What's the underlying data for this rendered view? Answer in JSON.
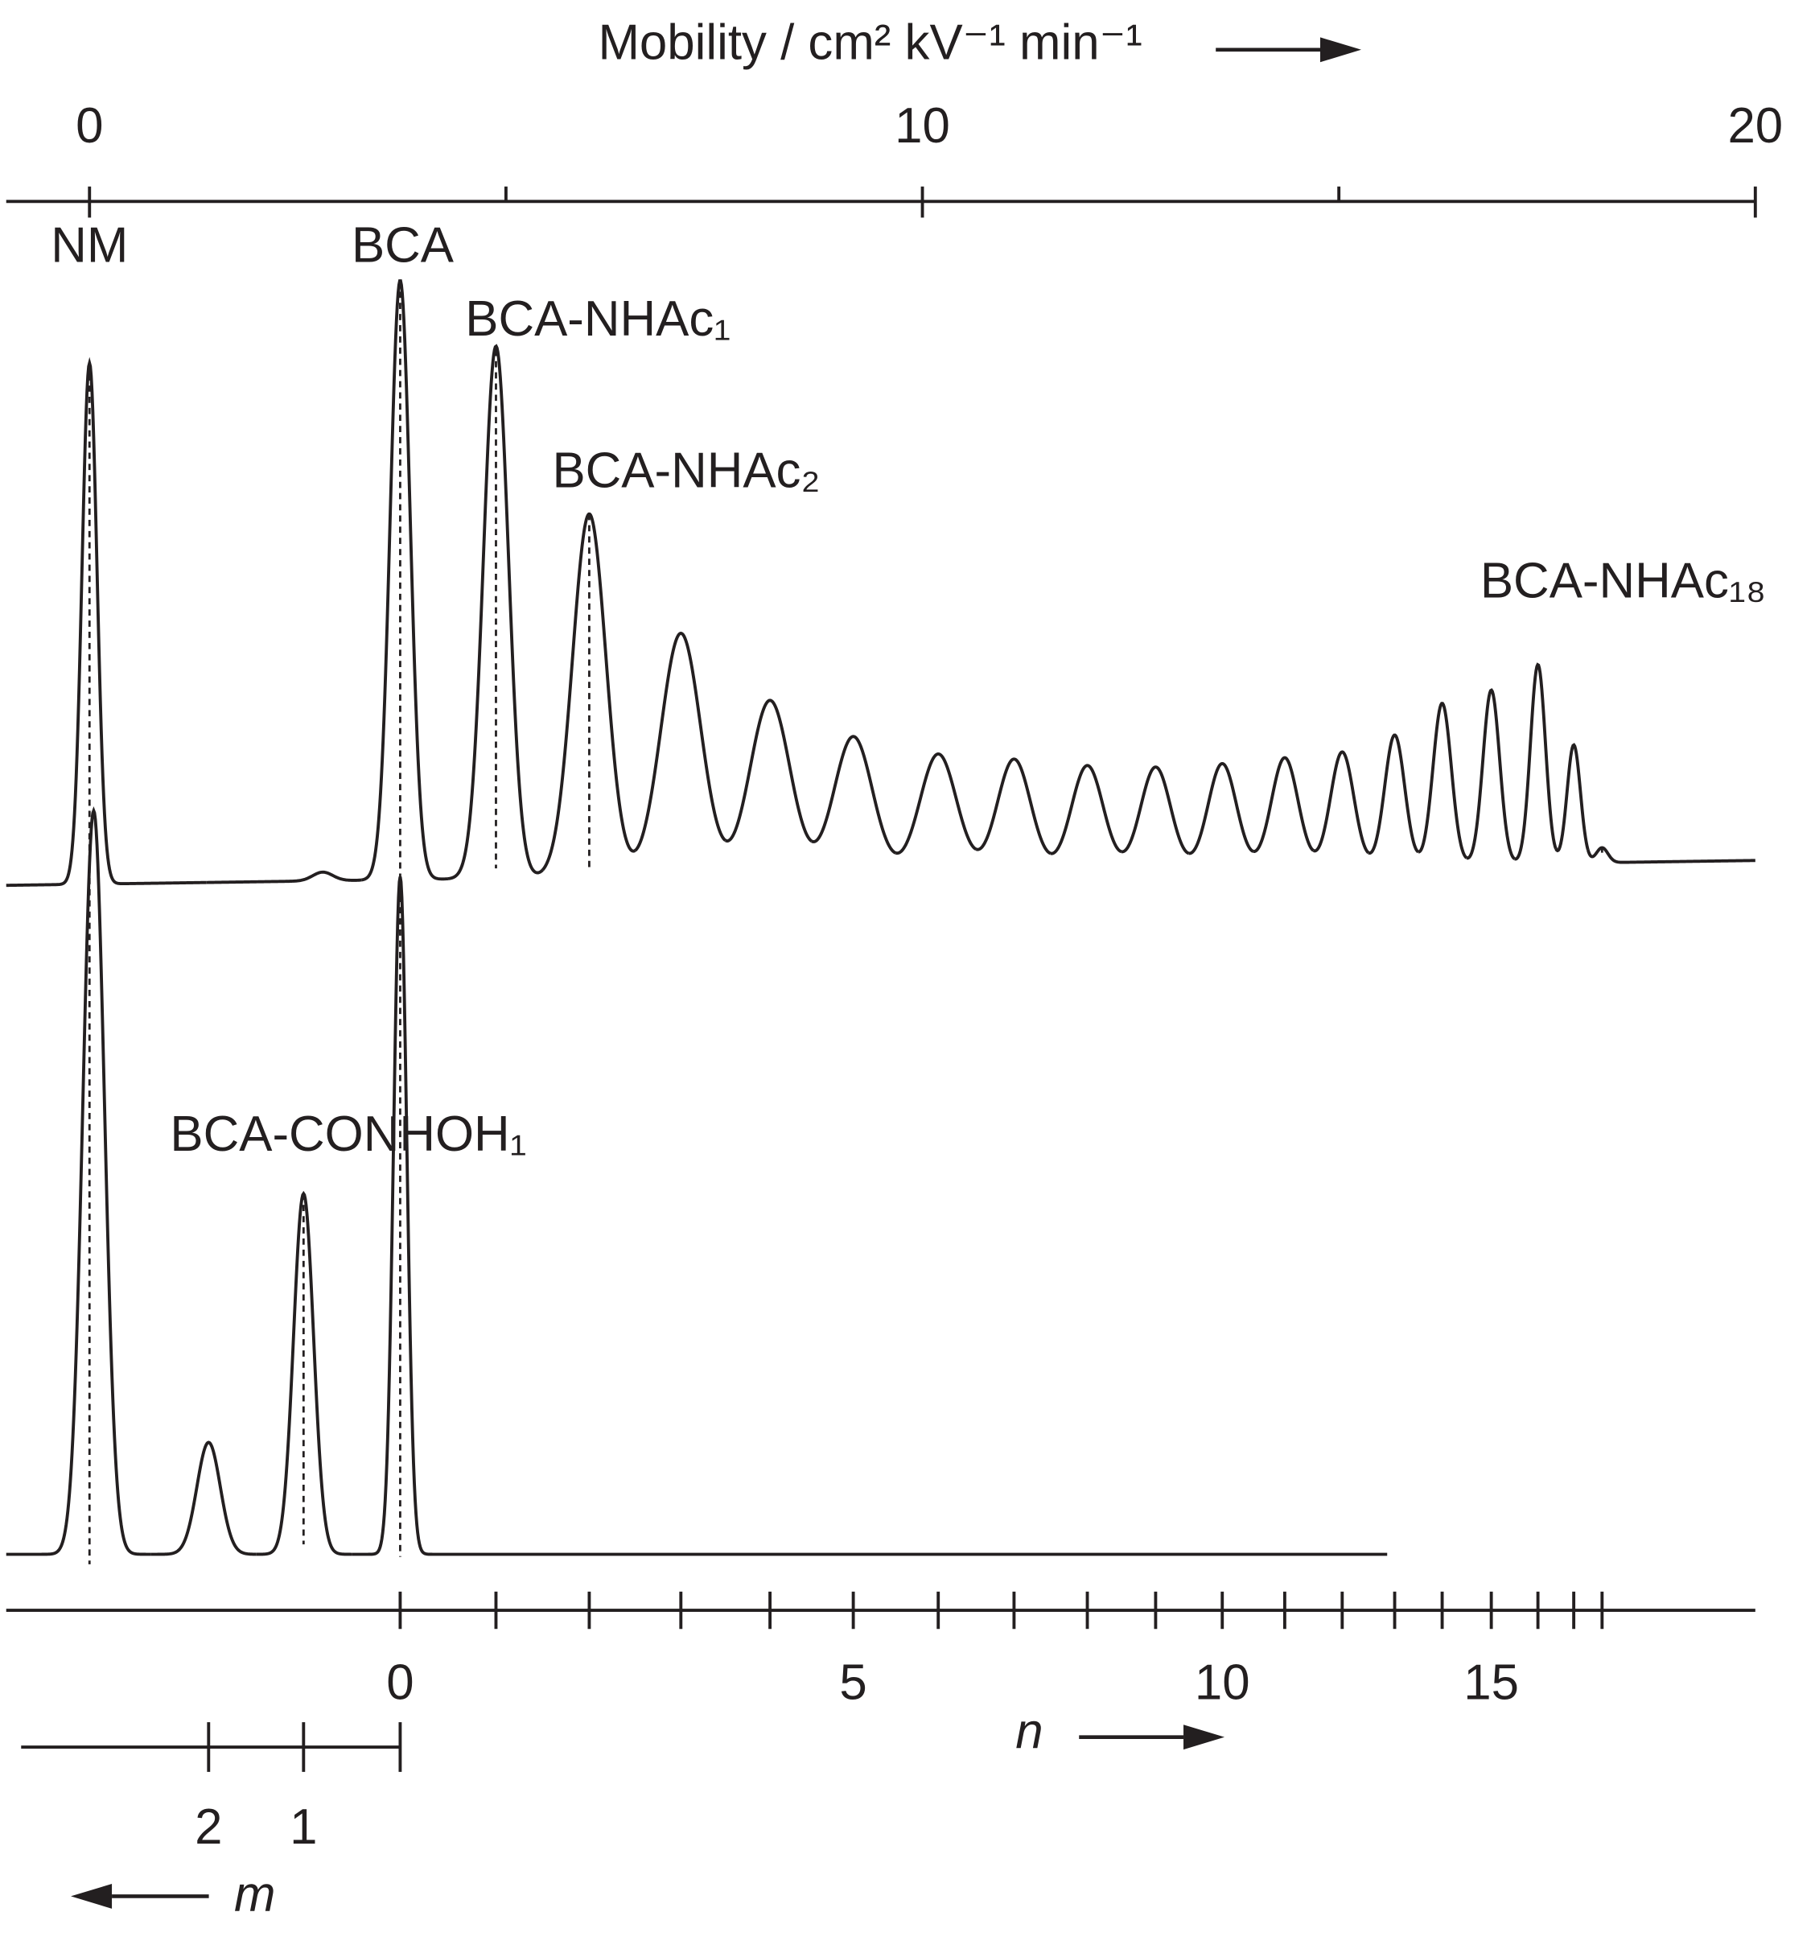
{
  "chart_data": {
    "type": "electropherogram",
    "x_label": "Mobility / cm² kV⁻¹ min⁻¹",
    "xlim": [
      -1,
      20
    ],
    "xticks": [
      0,
      10,
      20
    ],
    "xminor_ticks": [
      5,
      15
    ],
    "series": [
      {
        "color": "#231f20",
        "xrange": [
          -1,
          20
        ],
        "x": [
          0,
          2.8,
          3.73,
          4.88,
          6.0,
          7.1,
          8.17,
          9.17,
          10.19,
          11.1,
          11.98,
          12.8,
          13.6,
          14.35,
          15.04,
          15.67,
          16.24,
          16.83,
          17.39,
          17.82,
          18.16
        ],
        "values": [
          419,
          7,
          482,
          428,
          292,
          195,
          140,
          110,
          95,
          90,
          84,
          82,
          84,
          88,
          92,
          105,
          130,
          140,
          160,
          95,
          12
        ],
        "widths": [
          0.09,
          0.12,
          0.12,
          0.15,
          0.2,
          0.24,
          0.24,
          0.23,
          0.22,
          0.2,
          0.19,
          0.18,
          0.17,
          0.16,
          0.14,
          0.12,
          0.11,
          0.1,
          0.09,
          0.08,
          0.07
        ],
        "labels": [
          "NM",
          null,
          "BCA",
          "BCA-NHAc₁",
          "BCA-NHAc₂",
          null,
          null,
          null,
          null,
          null,
          null,
          null,
          null,
          null,
          null,
          null,
          null,
          null,
          null,
          null,
          "BCA-NHAc₁₈"
        ]
      },
      {
        "color": "#231f20",
        "xrange": [
          -1,
          15.58
        ],
        "x": [
          0.05,
          1.43,
          2.57,
          3.73
        ],
        "values": [
          598,
          90,
          290,
          545
        ],
        "widths": [
          0.13,
          0.14,
          0.12,
          0.08
        ],
        "labels": [
          null,
          null,
          "BCA-CONHOH₁",
          null
        ]
      }
    ],
    "n_axis": {
      "label": "n",
      "ticks": [
        0,
        1,
        2,
        3,
        4,
        5,
        6,
        7,
        8,
        9,
        10,
        11,
        12,
        13,
        14,
        15,
        16,
        17,
        18
      ],
      "labeled_ticks": [
        0,
        5,
        10,
        15
      ]
    },
    "m_axis": {
      "label": "m",
      "ticks": [
        0,
        1,
        2
      ],
      "labeled_ticks": [
        1,
        2
      ]
    }
  }
}
